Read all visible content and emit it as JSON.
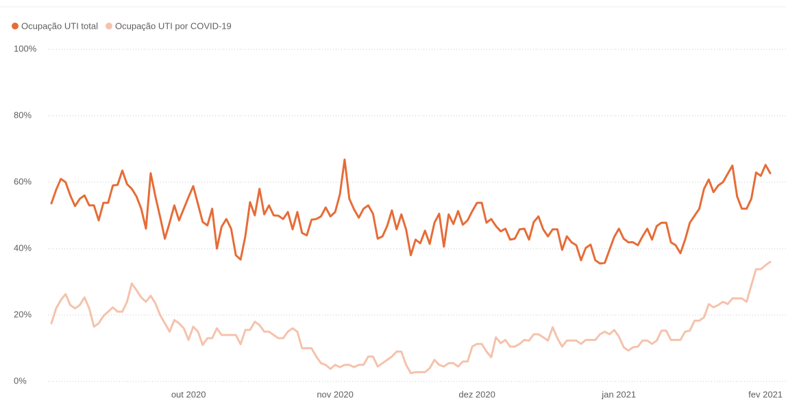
{
  "chart_data": {
    "type": "line",
    "categories": [
      null,
      null,
      null,
      null,
      null,
      null,
      null,
      null,
      null,
      null,
      null,
      null,
      null,
      null,
      null,
      null,
      null,
      null,
      null,
      null,
      null,
      null,
      null,
      null,
      null,
      null,
      null,
      null,
      null,
      "out 2020",
      null,
      null,
      null,
      null,
      null,
      null,
      null,
      null,
      null,
      null,
      null,
      null,
      null,
      null,
      null,
      null,
      null,
      null,
      null,
      null,
      null,
      null,
      null,
      null,
      null,
      null,
      null,
      null,
      null,
      null,
      "nov 2020",
      null,
      null,
      null,
      null,
      null,
      null,
      null,
      null,
      null,
      null,
      null,
      null,
      null,
      null,
      null,
      null,
      null,
      null,
      null,
      null,
      null,
      null,
      null,
      null,
      null,
      null,
      null,
      null,
      null,
      "dez 2020",
      null,
      null,
      null,
      null,
      null,
      null,
      null,
      null,
      null,
      null,
      null,
      null,
      null,
      null,
      null,
      null,
      null,
      null,
      null,
      null,
      null,
      null,
      null,
      null,
      null,
      null,
      null,
      null,
      null,
      "jan 2021",
      null,
      null,
      null,
      null,
      null,
      null,
      null,
      null,
      null,
      null,
      null,
      null,
      null,
      null,
      null,
      null,
      null,
      null,
      null,
      null,
      null,
      null,
      null,
      null,
      null,
      null,
      null,
      null,
      null,
      null,
      "fev 2021",
      null
    ],
    "series": [
      {
        "name": "Ocupação UTI total",
        "color": "#e66c37",
        "values": [
          53.6,
          57.7,
          61,
          60,
          56,
          52.8,
          55,
          56,
          53,
          53,
          48.5,
          53.8,
          53.8,
          59,
          59.2,
          63.5,
          59.4,
          58,
          55.7,
          52,
          46,
          62.7,
          55.7,
          49.5,
          43,
          47.8,
          53,
          48.5,
          52,
          55.5,
          58.8,
          53.4,
          48,
          47,
          52,
          40,
          46.6,
          48.9,
          46,
          38,
          36.7,
          43.7,
          54,
          50,
          58,
          50.3,
          53,
          50,
          49.9,
          48.9,
          51,
          45.8,
          51,
          44.7,
          44,
          48.7,
          48.9,
          49.7,
          52.4,
          49.7,
          51,
          56.3,
          66.8,
          55,
          51.8,
          49.3,
          52,
          53,
          50.5,
          43,
          43.7,
          46.8,
          51.5,
          45.8,
          50.3,
          45.8,
          38,
          42.7,
          41.6,
          45.4,
          41.4,
          47.8,
          50.5,
          40.6,
          50.3,
          47.4,
          51.3,
          47.2,
          48.5,
          51.3,
          53.8,
          53.8,
          47.8,
          48.9,
          46.8,
          45.2,
          46,
          42.7,
          43,
          45.8,
          46,
          42.7,
          48,
          49.7,
          45.8,
          43.7,
          45.8,
          45.8,
          39.6,
          43.7,
          41.9,
          41,
          36.5,
          40.2,
          41.2,
          36.5,
          35.5,
          35.7,
          39.6,
          43.5,
          46,
          43,
          41.9,
          41.9,
          41,
          43.7,
          46,
          42.7,
          46.8,
          47.8,
          47.8,
          41.9,
          41,
          38.6,
          42.7,
          47.8,
          49.9,
          52,
          58,
          60.8,
          57,
          59,
          60,
          62.5,
          65,
          55.7,
          52,
          52,
          55,
          62.9,
          61.9,
          65.2,
          62.7
        ]
      },
      {
        "name": "Ocupação UTI por COVID-19",
        "color": "#f5c2ab",
        "values": [
          17.5,
          22,
          24.5,
          26.3,
          23,
          22,
          23,
          25.3,
          22,
          16.5,
          17.5,
          19.7,
          21,
          22.3,
          21,
          21,
          24,
          29.5,
          27.5,
          25.3,
          24,
          25.8,
          23.5,
          20,
          17.5,
          15,
          18.5,
          17.5,
          16,
          12.5,
          16.5,
          15,
          11,
          13,
          13,
          16,
          14,
          14,
          14,
          14,
          11.2,
          15.5,
          15.5,
          18,
          17,
          15,
          15,
          14,
          13,
          13,
          15,
          16,
          15,
          10,
          10,
          10,
          7.5,
          5.5,
          5,
          3.8,
          5,
          4.3,
          5,
          5,
          4.3,
          5,
          5,
          7.5,
          7.5,
          4.5,
          5.5,
          6.5,
          7.5,
          9,
          9,
          5,
          2.5,
          2.8,
          2.8,
          2.8,
          4,
          6.5,
          5,
          4.5,
          5.5,
          5.5,
          4.5,
          6,
          6,
          10.5,
          11.3,
          11.3,
          9,
          7.3,
          13.3,
          11.5,
          12.5,
          10.5,
          10.5,
          11.3,
          12.5,
          12.3,
          14.2,
          14.2,
          13.3,
          12.3,
          16.3,
          13,
          10.5,
          12.3,
          12.3,
          12.3,
          11.3,
          12.5,
          12.5,
          12.5,
          14.2,
          15,
          14.2,
          15.5,
          13.5,
          10.3,
          9.3,
          10.3,
          10.5,
          12.3,
          12.3,
          11.3,
          12.3,
          15.3,
          15.3,
          12.5,
          12.5,
          12.5,
          15,
          15.3,
          18.3,
          18.3,
          19.3,
          23.3,
          22.3,
          23,
          24,
          23.3,
          25,
          25,
          25,
          24,
          29,
          33.8,
          33.8,
          35,
          36
        ]
      }
    ],
    "ylim": [
      0,
      100
    ],
    "yticks": [
      {
        "value": 0,
        "label": "0%"
      },
      {
        "value": 20,
        "label": "20%"
      },
      {
        "value": 40,
        "label": "40%"
      },
      {
        "value": 60,
        "label": "60%"
      },
      {
        "value": 80,
        "label": "80%"
      },
      {
        "value": 100,
        "label": "100%"
      }
    ],
    "grid": true,
    "legend": "top-left"
  }
}
